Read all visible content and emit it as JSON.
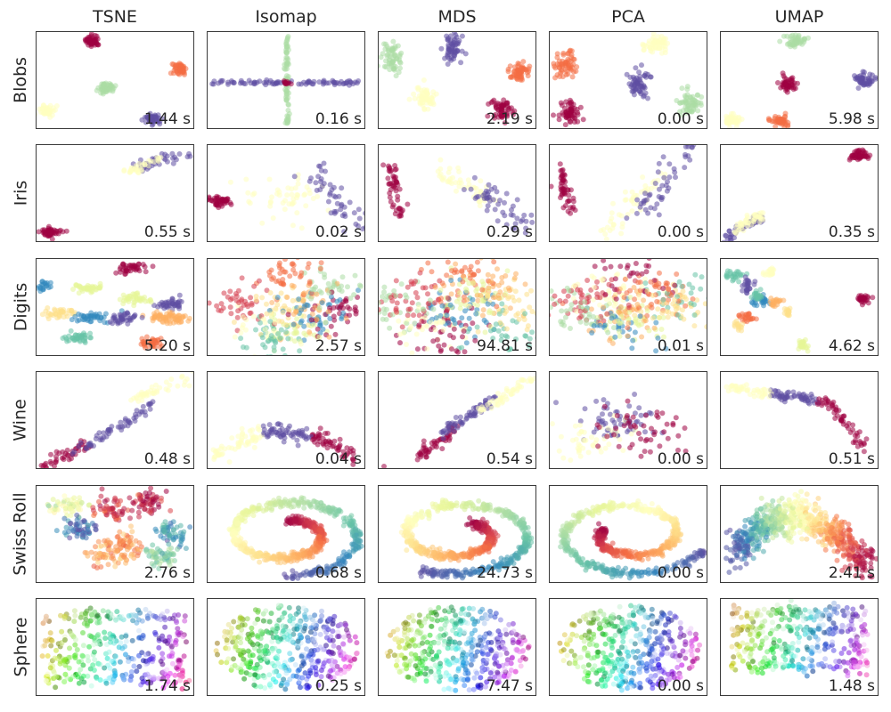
{
  "chart_data": {
    "type": "scatter",
    "methods": [
      "TSNE",
      "Isomap",
      "MDS",
      "PCA",
      "UMAP"
    ],
    "datasets": [
      "Blobs",
      "Iris",
      "Digits",
      "Wine",
      "Swiss Roll",
      "Sphere"
    ],
    "times": [
      [
        "1.44 s",
        "0.16 s",
        "2.19 s",
        "0.00 s",
        "5.98 s"
      ],
      [
        "0.55 s",
        "0.02 s",
        "0.29 s",
        "0.00 s",
        "0.35 s"
      ],
      [
        "5.20 s",
        "2.57 s",
        "94.81 s",
        "0.01 s",
        "4.62 s"
      ],
      [
        "0.48 s",
        "0.04 s",
        "0.54 s",
        "0.00 s",
        "0.51 s"
      ],
      [
        "2.76 s",
        "0.68 s",
        "24.73 s",
        "0.00 s",
        "2.41 s"
      ],
      [
        "1.74 s",
        "0.25 s",
        "7.47 s",
        "0.00 s",
        "1.48 s"
      ]
    ],
    "axes": "no ticks, no grid",
    "marker_alpha": 0.55,
    "colormap": "Spectral",
    "palette": [
      "#9e0142",
      "#d53e4f",
      "#f46d43",
      "#fdae61",
      "#fee08b",
      "#ffffbf",
      "#e6f598",
      "#abdda4",
      "#66c2a5",
      "#3288bd",
      "#5e4fa2"
    ]
  }
}
